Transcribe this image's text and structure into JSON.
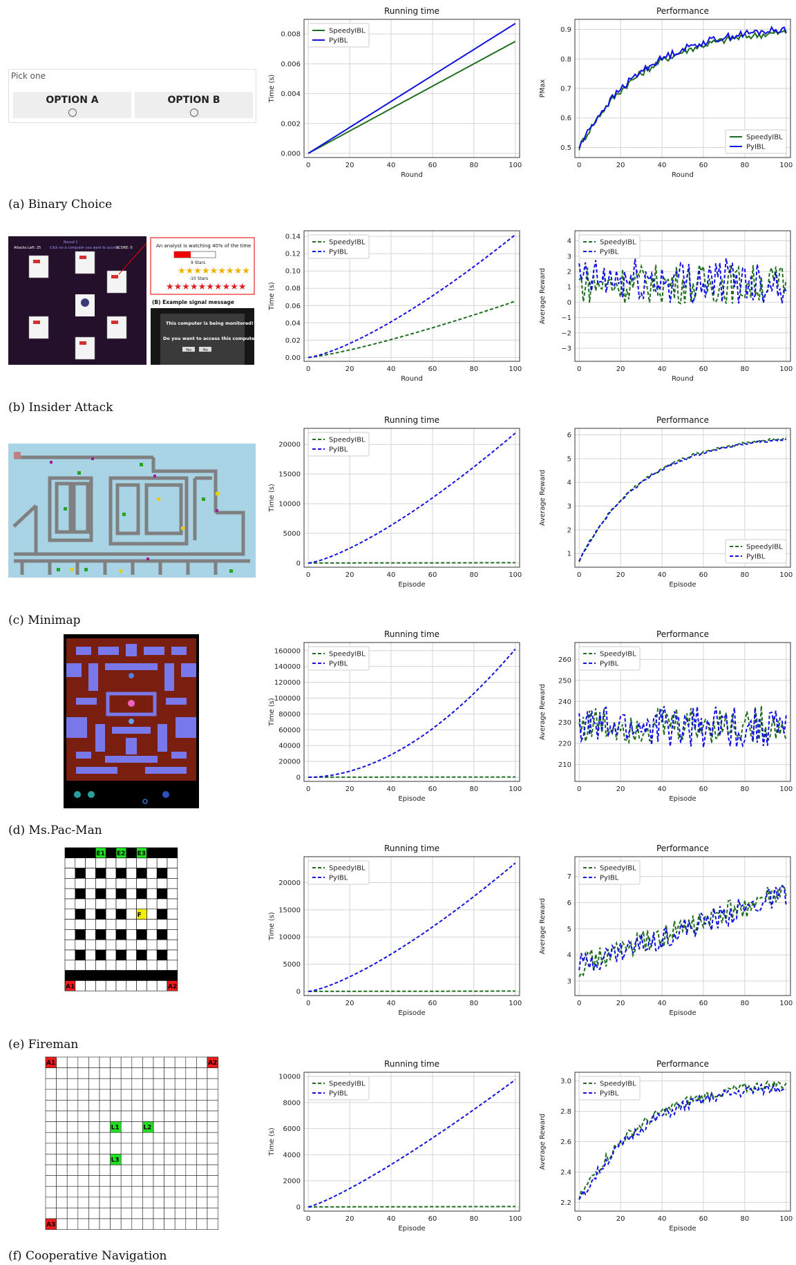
{
  "captions": {
    "a": "(a) Binary Choice",
    "b": "(b) Insider Attack",
    "c": "(c) Minimap",
    "d": "(d) Ms.Pac-Man",
    "e": "(e) Fireman",
    "f": "(f) Cooperative Navigation"
  },
  "binary_choice": {
    "prompt": "Pick one",
    "option_a": "OPTION A",
    "option_b": "OPTION B"
  },
  "insider": {
    "header_attacks": "Attacks Left: 25",
    "header_round": "Round 1",
    "header_click": "Click on a computer you want to access",
    "header_score": "SCORE: 0",
    "analyst": "An analyst is watching 40% of the time",
    "stars_pos": "9 Stars",
    "stars_neg": "-10 Stars",
    "example_title": "(B) Example signal message",
    "signal_1": "This computer is being monitored!",
    "signal_2": "Do you want to access this computer?",
    "btn_yes": "Yes",
    "btn_no": "No"
  },
  "fireman": {
    "labels": [
      "E1",
      "E2",
      "E3",
      "F",
      "A1",
      "A2"
    ]
  },
  "coopnav": {
    "labels": [
      "A1",
      "A2",
      "L1",
      "L2",
      "L3",
      "A3"
    ]
  },
  "colors": {
    "speedy": "#1f6e1f",
    "pyibl": "#1010e0",
    "grid": "#d4d4d4"
  },
  "chart_data": [
    {
      "id": "a_time",
      "type": "line",
      "title": "Running time",
      "xlabel": "Round",
      "ylabel": "Time (s)",
      "xlim": [
        0,
        100
      ],
      "ylim": [
        0,
        0.0087
      ],
      "xticks": [
        0,
        20,
        40,
        60,
        80,
        100
      ],
      "yticks": [
        0,
        0.002,
        0.004,
        0.006,
        0.008
      ],
      "ytick_labels": [
        "0.000",
        "0.002",
        "0.004",
        "0.006",
        "0.008"
      ],
      "legend": "top-left",
      "style": "solid",
      "series": [
        {
          "name": "SpeedyIBL",
          "model": "linear",
          "end": 0.0075
        },
        {
          "name": "PyIBL",
          "model": "linear",
          "end": 0.0087
        }
      ]
    },
    {
      "id": "a_perf",
      "type": "line",
      "title": "Performance",
      "xlabel": "Round",
      "ylabel": "PMax",
      "xlim": [
        0,
        100
      ],
      "ylim": [
        0.48,
        0.92
      ],
      "xticks": [
        0,
        20,
        40,
        60,
        80,
        100
      ],
      "yticks": [
        0.5,
        0.6,
        0.7,
        0.8,
        0.9
      ],
      "ytick_labels": [
        "0.5",
        "0.6",
        "0.7",
        "0.8",
        "0.9"
      ],
      "legend": "bottom-right",
      "style": "solid",
      "series": [
        {
          "name": "SpeedyIBL",
          "model": "learn",
          "start": 0.5,
          "end": 0.89,
          "noise": 0.012
        },
        {
          "name": "PyIBL",
          "model": "learn",
          "start": 0.5,
          "end": 0.9,
          "noise": 0.012
        }
      ]
    },
    {
      "id": "b_time",
      "type": "line",
      "title": "",
      "xlabel": "Round",
      "ylabel": "Time (s)",
      "xlim": [
        0,
        100
      ],
      "ylim": [
        0,
        0.142
      ],
      "xticks": [
        0,
        20,
        40,
        60,
        80,
        100
      ],
      "yticks": [
        0,
        0.02,
        0.04,
        0.06,
        0.08,
        0.1,
        0.12,
        0.14
      ],
      "ytick_labels": [
        "0.00",
        "0.02",
        "0.04",
        "0.06",
        "0.08",
        "0.10",
        "0.12",
        "0.14"
      ],
      "legend": "top-left",
      "style": "dashed",
      "series": [
        {
          "name": "SpeedyIBL",
          "model": "curve",
          "end": 0.065,
          "power": 1.25
        },
        {
          "name": "PyIBL",
          "model": "curve",
          "end": 0.142,
          "power": 1.35
        }
      ]
    },
    {
      "id": "b_perf",
      "type": "line",
      "title": "",
      "xlabel": "Round",
      "ylabel": "Average Reward",
      "xlim": [
        0,
        100
      ],
      "ylim": [
        -3.6,
        4.4
      ],
      "xticks": [
        0,
        20,
        40,
        60,
        80,
        100
      ],
      "yticks": [
        -3,
        -2,
        -1,
        0,
        1,
        2,
        3,
        4
      ],
      "ytick_labels": [
        "−3",
        "−2",
        "−1",
        "0",
        "1",
        "2",
        "3",
        "4"
      ],
      "legend": "top-left",
      "style": "dashed",
      "series": [
        {
          "name": "SpeedyIBL",
          "model": "noisy",
          "mean": 1.2,
          "noise": 1.3
        },
        {
          "name": "PyIBL",
          "model": "noisy",
          "mean": 1.4,
          "noise": 1.5
        }
      ]
    },
    {
      "id": "c_time",
      "type": "line",
      "title": "Running time",
      "xlabel": "Episode",
      "ylabel": "Time (s)",
      "xlim": [
        0,
        100
      ],
      "ylim": [
        0,
        22000
      ],
      "xticks": [
        0,
        20,
        40,
        60,
        80,
        100
      ],
      "yticks": [
        0,
        5000,
        10000,
        15000,
        20000
      ],
      "ytick_labels": [
        "0",
        "5000",
        "10000",
        "15000",
        "20000"
      ],
      "legend": "top-left",
      "style": "dashed",
      "series": [
        {
          "name": "SpeedyIBL",
          "model": "linear",
          "end": 60
        },
        {
          "name": "PyIBL",
          "model": "curve",
          "end": 21900,
          "power": 1.35
        }
      ]
    },
    {
      "id": "c_perf",
      "type": "line",
      "title": "Performance",
      "xlabel": "Episode",
      "ylabel": "Average Reward",
      "xlim": [
        0,
        100
      ],
      "ylim": [
        0.6,
        6.1
      ],
      "xticks": [
        0,
        20,
        40,
        60,
        80,
        100
      ],
      "yticks": [
        1,
        2,
        3,
        4,
        5,
        6
      ],
      "ytick_labels": [
        "1",
        "2",
        "3",
        "4",
        "5",
        "6"
      ],
      "legend": "bottom-right",
      "style": "dashed",
      "series": [
        {
          "name": "SpeedyIBL",
          "model": "learn",
          "start": 0.7,
          "end": 5.85,
          "noise": 0.06
        },
        {
          "name": "PyIBL",
          "model": "learn",
          "start": 0.7,
          "end": 5.8,
          "noise": 0.05
        }
      ]
    },
    {
      "id": "d_time",
      "type": "line",
      "title": "Running time",
      "xlabel": "Episode",
      "ylabel": "Time (s)",
      "xlim": [
        0,
        100
      ],
      "ylim": [
        0,
        165000
      ],
      "xticks": [
        0,
        20,
        40,
        60,
        80,
        100
      ],
      "yticks": [
        0,
        20000,
        40000,
        60000,
        80000,
        100000,
        120000,
        140000,
        160000
      ],
      "ytick_labels": [
        "0",
        "20000",
        "40000",
        "60000",
        "80000",
        "100000",
        "120000",
        "140000",
        "160000"
      ],
      "legend": "top-left",
      "style": "dashed",
      "series": [
        {
          "name": "SpeedyIBL",
          "model": "linear",
          "end": 300
        },
        {
          "name": "PyIBL",
          "model": "curve",
          "end": 162000,
          "power": 1.9
        }
      ]
    },
    {
      "id": "d_perf",
      "type": "line",
      "title": "Performance",
      "xlabel": "Episode",
      "ylabel": "Average Reward",
      "xlim": [
        0,
        100
      ],
      "ylim": [
        204,
        266
      ],
      "xticks": [
        0,
        20,
        40,
        60,
        80,
        100
      ],
      "yticks": [
        210,
        220,
        230,
        240,
        250,
        260
      ],
      "ytick_labels": [
        "210",
        "220",
        "230",
        "240",
        "250",
        "260"
      ],
      "legend": "top-left",
      "style": "dashed",
      "series": [
        {
          "name": "SpeedyIBL",
          "model": "noisy",
          "mean": 229,
          "noise": 9
        },
        {
          "name": "PyIBL",
          "model": "noisy",
          "mean": 228,
          "noise": 10
        }
      ]
    },
    {
      "id": "e_time",
      "type": "line",
      "title": "Running time",
      "xlabel": "Episode",
      "ylabel": "Time (s)",
      "xlim": [
        0,
        100
      ],
      "ylim": [
        0,
        24000
      ],
      "xticks": [
        0,
        20,
        40,
        60,
        80,
        100
      ],
      "yticks": [
        0,
        5000,
        10000,
        15000,
        20000
      ],
      "ytick_labels": [
        "0",
        "5000",
        "10000",
        "15000",
        "20000"
      ],
      "legend": "top-left",
      "style": "dashed",
      "series": [
        {
          "name": "SpeedyIBL",
          "model": "linear",
          "end": 60
        },
        {
          "name": "PyIBL",
          "model": "curve",
          "end": 23600,
          "power": 1.35
        }
      ]
    },
    {
      "id": "e_perf",
      "type": "line",
      "title": "Performance",
      "xlabel": "Episode",
      "ylabel": "Average Reward",
      "xlim": [
        0,
        100
      ],
      "ylim": [
        2.6,
        7.6
      ],
      "xticks": [
        0,
        20,
        40,
        60,
        80,
        100
      ],
      "yticks": [
        3,
        4,
        5,
        6,
        7
      ],
      "ytick_labels": [
        "3",
        "4",
        "5",
        "6",
        "7"
      ],
      "legend": "top-left",
      "style": "dashed",
      "series": [
        {
          "name": "SpeedyIBL",
          "model": "trend",
          "start": 3.6,
          "end": 6.4,
          "noise": 0.45
        },
        {
          "name": "PyIBL",
          "model": "trend",
          "start": 3.6,
          "end": 6.3,
          "noise": 0.45
        }
      ]
    },
    {
      "id": "f_time",
      "type": "line",
      "title": "Running time",
      "xlabel": "Episode",
      "ylabel": "Time (s)",
      "xlim": [
        0,
        100
      ],
      "ylim": [
        0,
        10000
      ],
      "xticks": [
        0,
        20,
        40,
        60,
        80,
        100
      ],
      "yticks": [
        0,
        2000,
        4000,
        6000,
        8000,
        10000
      ],
      "ytick_labels": [
        "0",
        "2000",
        "4000",
        "6000",
        "8000",
        "10000"
      ],
      "legend": "top-left",
      "style": "dashed",
      "series": [
        {
          "name": "SpeedyIBL",
          "model": "linear",
          "end": 30
        },
        {
          "name": "PyIBL",
          "model": "curve",
          "end": 9750,
          "power": 1.2
        }
      ]
    },
    {
      "id": "f_perf",
      "type": "line",
      "title": "Performance",
      "xlabel": "Episode",
      "ylabel": "Average Reward",
      "xlim": [
        0,
        100
      ],
      "ylim": [
        2.17,
        3.03
      ],
      "xticks": [
        0,
        20,
        40,
        60,
        80,
        100
      ],
      "yticks": [
        2.2,
        2.4,
        2.6,
        2.8,
        3.0
      ],
      "ytick_labels": [
        "2.2",
        "2.4",
        "2.6",
        "2.8",
        "3.0"
      ],
      "legend": "top-left",
      "style": "dashed",
      "series": [
        {
          "name": "SpeedyIBL",
          "model": "learn",
          "start": 2.22,
          "end": 2.98,
          "noise": 0.035
        },
        {
          "name": "PyIBL",
          "model": "learn",
          "start": 2.2,
          "end": 2.96,
          "noise": 0.035
        }
      ]
    }
  ]
}
